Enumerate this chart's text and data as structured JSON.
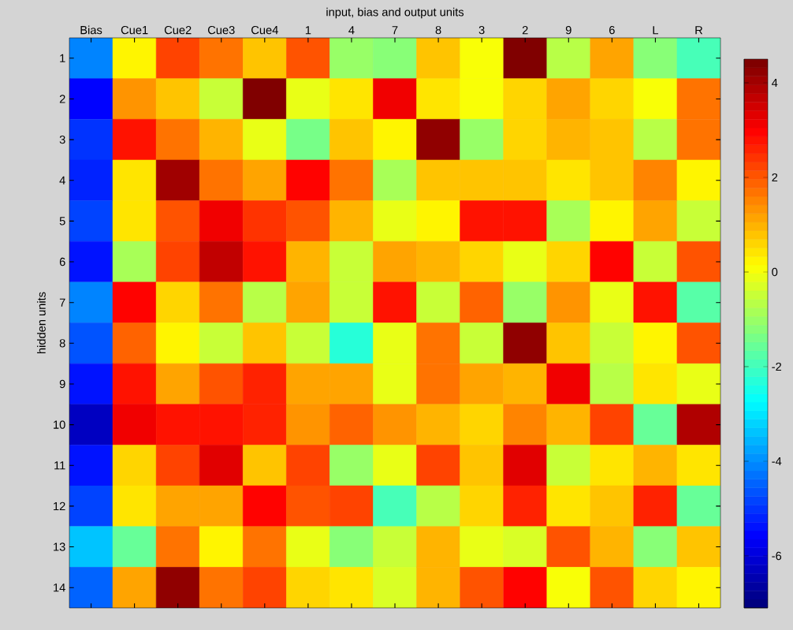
{
  "chart_data": {
    "type": "heatmap",
    "xlabel": "input, bias and output units",
    "ylabel": "hidden units",
    "categories": [
      "Bias",
      "Cue1",
      "Cue2",
      "Cue3",
      "Cue4",
      "1",
      "4",
      "7",
      "8",
      "3",
      "2",
      "9",
      "6",
      "L",
      "R"
    ],
    "y_categories": [
      "1",
      "2",
      "3",
      "4",
      "5",
      "6",
      "7",
      "8",
      "9",
      "10",
      "11",
      "12",
      "13",
      "14"
    ],
    "cells": [
      [
        -4.1,
        0.3,
        2.3,
        1.6,
        0.8,
        2.0,
        -1.0,
        -1.3,
        0.8,
        0.1,
        4.4,
        -0.6,
        1.2,
        -1.3,
        -2.0
      ],
      [
        -5.6,
        1.3,
        0.8,
        -0.4,
        4.4,
        -0.2,
        0.4,
        3.2,
        0.4,
        0.1,
        0.6,
        1.2,
        0.6,
        0.1,
        1.7
      ],
      [
        -5.1,
        2.8,
        1.6,
        1.0,
        -0.2,
        -1.4,
        0.7,
        0.3,
        4.2,
        -1.0,
        0.6,
        1.0,
        0.8,
        -0.6,
        1.7
      ],
      [
        -5.2,
        0.5,
        4.1,
        1.7,
        1.2,
        3.0,
        1.6,
        -0.9,
        0.7,
        0.7,
        0.7,
        0.4,
        0.8,
        1.5,
        0.3
      ],
      [
        -4.9,
        0.5,
        2.1,
        3.1,
        2.5,
        2.1,
        1.0,
        -0.1,
        0.3,
        2.8,
        2.8,
        -0.9,
        0.3,
        1.2,
        -0.4
      ],
      [
        -5.4,
        -0.9,
        2.3,
        3.7,
        2.8,
        1.0,
        -0.4,
        1.2,
        1.0,
        0.6,
        -0.1,
        0.6,
        3.0,
        -0.4,
        2.0
      ],
      [
        -4.1,
        3.0,
        0.6,
        1.6,
        -0.6,
        1.2,
        -0.5,
        2.8,
        -0.4,
        1.8,
        -1.1,
        1.4,
        -0.1,
        2.8,
        -1.8
      ],
      [
        -4.6,
        1.8,
        0.3,
        -0.5,
        0.7,
        -0.5,
        -2.3,
        -0.1,
        1.6,
        -0.5,
        4.2,
        0.7,
        -0.5,
        0.2,
        2.0
      ],
      [
        -5.3,
        2.8,
        1.2,
        2.0,
        2.6,
        1.2,
        1.2,
        -0.1,
        1.6,
        1.2,
        1.0,
        3.1,
        -0.6,
        0.5,
        -0.1
      ],
      [
        -6.3,
        3.1,
        2.8,
        2.7,
        2.6,
        1.4,
        1.8,
        1.4,
        1.0,
        0.6,
        1.5,
        0.9,
        2.2,
        -1.5,
        3.8
      ],
      [
        -5.4,
        0.6,
        2.3,
        3.3,
        0.8,
        2.3,
        -1.0,
        -0.1,
        2.2,
        0.7,
        3.3,
        -0.4,
        0.4,
        1.0,
        0.4
      ],
      [
        -4.9,
        0.4,
        1.2,
        1.2,
        3.0,
        2.1,
        2.3,
        -1.9,
        -0.7,
        0.6,
        2.6,
        0.4,
        0.8,
        2.6,
        -1.5
      ],
      [
        -3.3,
        -1.6,
        1.7,
        0.3,
        1.7,
        -0.1,
        -1.3,
        -0.4,
        1.0,
        -0.1,
        -0.3,
        2.1,
        1.0,
        -1.3,
        0.8
      ],
      [
        -4.4,
        1.2,
        4.2,
        1.6,
        2.2,
        0.6,
        0.5,
        -0.3,
        1.0,
        2.0,
        3.0,
        0.1,
        2.0,
        0.6,
        0.3
      ]
    ],
    "clim": [
      -7.1,
      4.5
    ],
    "cticks": [
      -6,
      -4,
      -2,
      0,
      2,
      4
    ]
  }
}
